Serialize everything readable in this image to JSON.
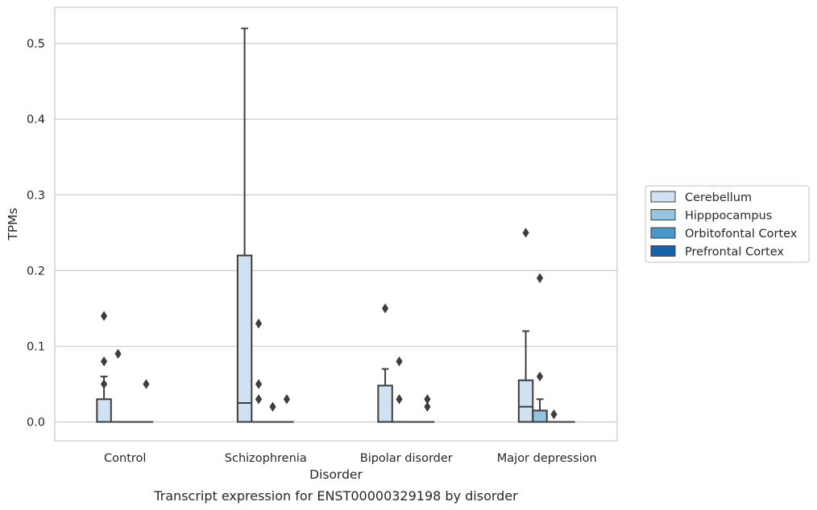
{
  "chart_data": {
    "type": "boxplot",
    "xlabel": "Disorder",
    "ylabel": "TPMs",
    "caption": "Transcript expression for ENST00000329198 by disorder",
    "ylim": [
      -0.025,
      0.548
    ],
    "yticks": [
      0.0,
      0.1,
      0.2,
      0.3,
      0.4,
      0.5
    ],
    "ytick_labels": [
      "0.0",
      "0.1",
      "0.2",
      "0.3",
      "0.4",
      "0.5"
    ],
    "grid": "horizontal",
    "legend_position": "right, outside",
    "categories": [
      "Control",
      "Schizophrenia",
      "Bipolar disorder",
      "Major depression"
    ],
    "series": [
      {
        "name": "Cerebellum",
        "color": "#d0e1f2",
        "boxes": [
          {
            "q1": 0.0,
            "median": 0.0,
            "q3": 0.03,
            "whisker_low": 0.0,
            "whisker_high": 0.06,
            "outliers": [
              0.14,
              0.08,
              0.05
            ]
          },
          {
            "q1": 0.0,
            "median": 0.025,
            "q3": 0.22,
            "whisker_low": 0.0,
            "whisker_high": 0.52,
            "outliers": []
          },
          {
            "q1": 0.0,
            "median": 0.0,
            "q3": 0.048,
            "whisker_low": 0.0,
            "whisker_high": 0.07,
            "outliers": [
              0.15
            ]
          },
          {
            "q1": 0.0,
            "median": 0.02,
            "q3": 0.055,
            "whisker_low": 0.0,
            "whisker_high": 0.12,
            "outliers": [
              0.25
            ]
          }
        ]
      },
      {
        "name": "Hipppocampus",
        "color": "#94c4df",
        "boxes": [
          {
            "q1": 0.0,
            "median": 0.0,
            "q3": 0.0,
            "whisker_low": 0.0,
            "whisker_high": 0.0,
            "outliers": [
              0.09
            ]
          },
          {
            "q1": 0.0,
            "median": 0.0,
            "q3": 0.0,
            "whisker_low": 0.0,
            "whisker_high": 0.0,
            "outliers": [
              0.13,
              0.05,
              0.03
            ]
          },
          {
            "q1": 0.0,
            "median": 0.0,
            "q3": 0.0,
            "whisker_low": 0.0,
            "whisker_high": 0.0,
            "outliers": [
              0.08,
              0.03
            ]
          },
          {
            "q1": 0.0,
            "median": 0.0,
            "q3": 0.015,
            "whisker_low": 0.0,
            "whisker_high": 0.03,
            "outliers": [
              0.19,
              0.06
            ]
          }
        ]
      },
      {
        "name": "Orbitofontal Cortex",
        "color": "#4a98c9",
        "boxes": [
          {
            "q1": 0.0,
            "median": 0.0,
            "q3": 0.0,
            "whisker_low": 0.0,
            "whisker_high": 0.0,
            "outliers": []
          },
          {
            "q1": 0.0,
            "median": 0.0,
            "q3": 0.0,
            "whisker_low": 0.0,
            "whisker_high": 0.0,
            "outliers": [
              0.02
            ]
          },
          {
            "q1": 0.0,
            "median": 0.0,
            "q3": 0.0,
            "whisker_low": 0.0,
            "whisker_high": 0.0,
            "outliers": []
          },
          {
            "q1": 0.0,
            "median": 0.0,
            "q3": 0.0,
            "whisker_low": 0.0,
            "whisker_high": 0.0,
            "outliers": [
              0.01
            ]
          }
        ]
      },
      {
        "name": "Prefrontal Cortex",
        "color": "#1764ab",
        "boxes": [
          {
            "q1": 0.0,
            "median": 0.0,
            "q3": 0.0,
            "whisker_low": 0.0,
            "whisker_high": 0.0,
            "outliers": [
              0.05
            ]
          },
          {
            "q1": 0.0,
            "median": 0.0,
            "q3": 0.0,
            "whisker_low": 0.0,
            "whisker_high": 0.0,
            "outliers": [
              0.03
            ]
          },
          {
            "q1": 0.0,
            "median": 0.0,
            "q3": 0.0,
            "whisker_low": 0.0,
            "whisker_high": 0.0,
            "outliers": [
              0.03,
              0.02
            ]
          },
          {
            "q1": 0.0,
            "median": 0.0,
            "q3": 0.0,
            "whisker_low": 0.0,
            "whisker_high": 0.0,
            "outliers": []
          }
        ]
      }
    ]
  }
}
